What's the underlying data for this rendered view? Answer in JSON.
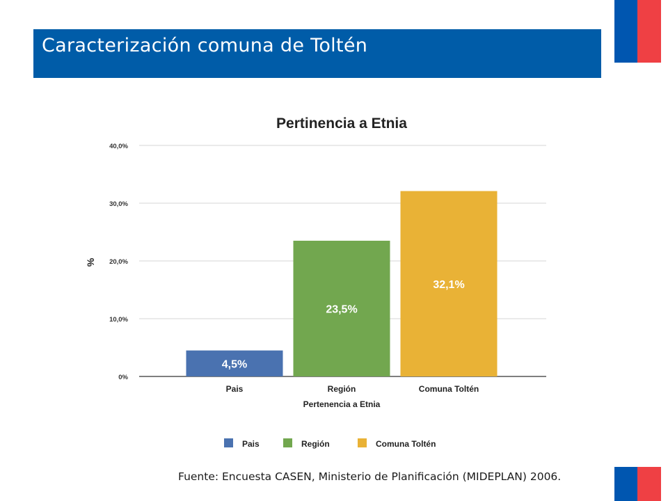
{
  "header": {
    "title": "Caracterización comuna de Toltén"
  },
  "colors": {
    "header_bg": "#005ca8",
    "flag_blue": "#0056b0",
    "flag_red": "#ef4044",
    "pais": "#4a72b0",
    "region": "#72a74f",
    "comuna": "#e9b236"
  },
  "chart_data": {
    "type": "bar",
    "title": "Pertinencia a Etnia",
    "xlabel": "Pertenencia a Etnia",
    "ylabel": "%",
    "ylim": [
      0,
      40
    ],
    "yticks": [
      0,
      10,
      20,
      30,
      40
    ],
    "ytick_labels": [
      "0%",
      "10,0%",
      "20,0%",
      "30,0%",
      "40,0%"
    ],
    "categories": [
      "Pais",
      "Región",
      "Comuna Toltén"
    ],
    "values": [
      4.5,
      23.5,
      32.1
    ],
    "data_labels": [
      "4,5%",
      "23,5%",
      "32,1%"
    ],
    "bar_colors": [
      "#4a72b0",
      "#72a74f",
      "#e9b236"
    ],
    "grid": true,
    "legend": {
      "position": "bottom",
      "entries": [
        "Pais",
        "Región",
        "Comuna Toltén"
      ]
    }
  },
  "source": "Fuente: Encuesta CASEN, Ministerio de Planificación (MIDEPLAN) 2006."
}
